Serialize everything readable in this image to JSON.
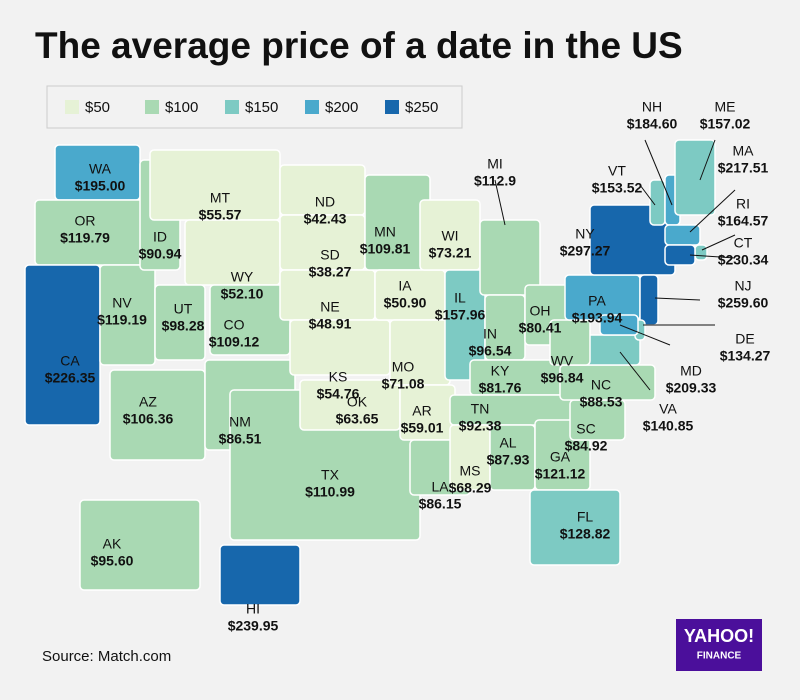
{
  "chart_data": {
    "type": "choropleth",
    "title": "The average price of a date in the US",
    "source": "Source: Match.com",
    "brand": "YAHOO!",
    "brand_sub": "FINANCE",
    "legend_bins": [
      {
        "value": 50,
        "label": "$50",
        "color": "#e6f2d6"
      },
      {
        "value": 100,
        "label": "$100",
        "color": "#a9d9b3"
      },
      {
        "value": 150,
        "label": "$150",
        "color": "#7dcac3"
      },
      {
        "value": 200,
        "label": "$200",
        "color": "#4aa9cc"
      },
      {
        "value": 250,
        "label": "$250",
        "color": "#1767ac"
      }
    ],
    "categories": [
      "WA",
      "OR",
      "CA",
      "NV",
      "ID",
      "MT",
      "WY",
      "UT",
      "AZ",
      "CO",
      "NM",
      "ND",
      "SD",
      "NE",
      "KS",
      "TX",
      "OK",
      "MN",
      "IA",
      "MO",
      "AR",
      "LA",
      "WI",
      "IL",
      "MI",
      "IN",
      "OH",
      "KY",
      "TN",
      "MS",
      "AL",
      "GA",
      "FL",
      "SC",
      "NC",
      "VA",
      "WV",
      "PA",
      "NY",
      "VT",
      "NH",
      "ME",
      "MA",
      "RI",
      "CT",
      "NJ",
      "DE",
      "MD",
      "AK",
      "HI"
    ],
    "values": [
      195.0,
      119.79,
      226.35,
      119.19,
      90.94,
      55.57,
      52.1,
      98.28,
      106.36,
      109.12,
      86.51,
      42.43,
      38.27,
      48.91,
      54.76,
      110.99,
      63.65,
      109.81,
      50.9,
      71.08,
      59.01,
      86.15,
      73.21,
      157.96,
      112.9,
      96.54,
      80.41,
      81.76,
      92.38,
      68.29,
      87.93,
      121.12,
      128.82,
      84.92,
      88.53,
      140.85,
      96.84,
      193.94,
      297.27,
      153.52,
      184.6,
      157.02,
      217.51,
      164.57,
      230.34,
      259.6,
      134.27,
      209.33,
      95.6,
      239.95
    ],
    "value_labels": [
      "$195.00",
      "$119.79",
      "$226.35",
      "$119.19",
      "$90.94",
      "$55.57",
      "$52.10",
      "$98.28",
      "$106.36",
      "$109.12",
      "$86.51",
      "$42.43",
      "$38.27",
      "$48.91",
      "$54.76",
      "$110.99",
      "$63.65",
      "$109.81",
      "$50.90",
      "$71.08",
      "$59.01",
      "$86.15",
      "$73.21",
      "$157.96",
      "$112.9",
      "$96.54",
      "$80.41",
      "$81.76",
      "$92.38",
      "$68.29",
      "$87.93",
      "$121.12",
      "$128.82",
      "$84.92",
      "$88.53",
      "$140.85",
      "$96.84",
      "$193.94",
      "$297.27",
      "$153.52",
      "$184.60",
      "$157.02",
      "$217.51",
      "$164.57",
      "$230.34",
      "$259.60",
      "$134.27",
      "$209.33",
      "$95.60",
      "$239.95"
    ]
  }
}
